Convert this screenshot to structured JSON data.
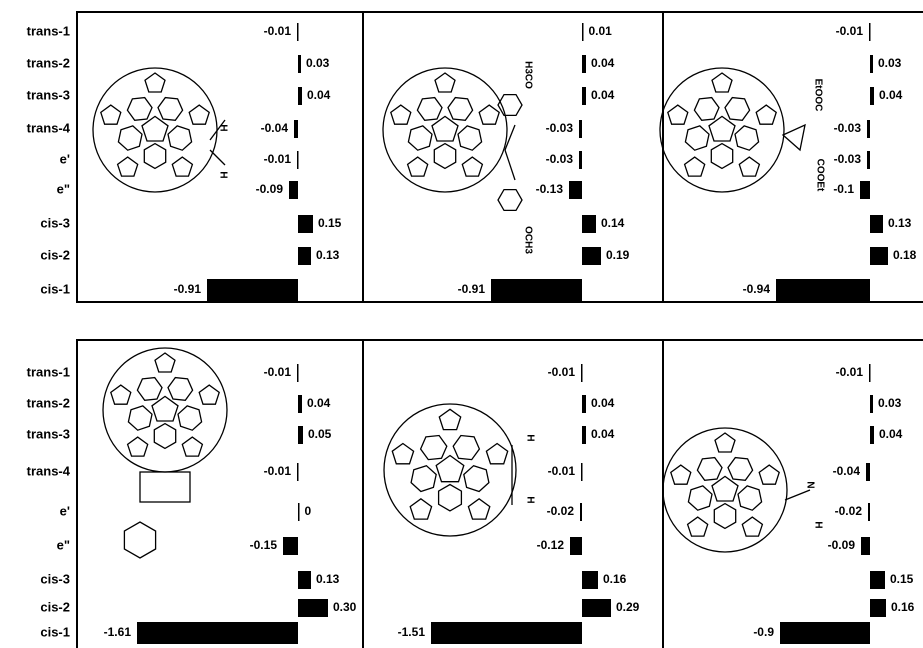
{
  "chart_data": [
    {
      "type": "hbar",
      "categories": [
        "trans-1",
        "trans-2",
        "trans-3",
        "trans-4",
        "e'",
        "e\"",
        "cis-3",
        "cis-2",
        "cis-1"
      ],
      "values": [
        -0.01,
        0.03,
        0.04,
        -0.04,
        -0.01,
        -0.09,
        0.15,
        0.13,
        -0.91
      ],
      "value_labels": [
        "-0.01",
        "0.03",
        "0.04",
        "-0.04",
        "-0.01",
        "-0.09",
        "0.15",
        "0.13",
        "-0.91"
      ],
      "color": "#000000",
      "annotations": [
        "H",
        "H"
      ]
    },
    {
      "type": "hbar",
      "values": [
        0.01,
        0.04,
        0.04,
        -0.03,
        -0.03,
        -0.13,
        0.14,
        0.19,
        -0.91
      ],
      "value_labels": [
        "0.01",
        "0.04",
        "0.04",
        "-0.03",
        "-0.03",
        "-0.13",
        "0.14",
        "0.19",
        "-0.91"
      ],
      "color": "#000000",
      "annotations": [
        "H3CO",
        "OCH3"
      ]
    },
    {
      "type": "hbar",
      "values": [
        -0.01,
        0.03,
        0.04,
        -0.03,
        -0.03,
        -0.1,
        0.13,
        0.18,
        -0.94
      ],
      "value_labels": [
        "-0.01",
        "0.03",
        "0.04",
        "-0.03",
        "-0.03",
        "-0.1",
        "0.13",
        "0.18",
        "-0.94"
      ],
      "color": "#000000",
      "annotations": [
        "EtOOC",
        "COOEt"
      ]
    },
    {
      "type": "hbar",
      "categories": [
        "trans-1",
        "trans-2",
        "trans-3",
        "trans-4",
        "e'",
        "e\"",
        "cis-3",
        "cis-2",
        "cis-1"
      ],
      "values": [
        -0.01,
        0.04,
        0.05,
        -0.01,
        0,
        -0.15,
        0.13,
        0.3,
        -1.61
      ],
      "value_labels": [
        "-0.01",
        "0.04",
        "0.05",
        "-0.01",
        "0",
        "-0.15",
        "0.13",
        "0.30",
        "-1.61"
      ],
      "color": "#000000"
    },
    {
      "type": "hbar",
      "values": [
        -0.01,
        0.04,
        0.04,
        -0.01,
        -0.02,
        -0.12,
        0.16,
        0.29,
        -1.51
      ],
      "value_labels": [
        "-0.01",
        "0.04",
        "0.04",
        "-0.01",
        "-0.02",
        "-0.12",
        "0.16",
        "0.29",
        "-1.51"
      ],
      "color": "#000000",
      "annotations": [
        "H",
        "H"
      ]
    },
    {
      "type": "hbar",
      "values": [
        -0.01,
        0.03,
        0.04,
        -0.04,
        -0.02,
        -0.09,
        0.15,
        0.16,
        -0.9
      ],
      "value_labels": [
        "-0.01",
        "0.03",
        "0.04",
        "-0.04",
        "-0.02",
        "-0.09",
        "0.15",
        "0.16",
        "-0.9"
      ],
      "color": "#000000",
      "annotations": [
        "N",
        "H"
      ]
    }
  ]
}
